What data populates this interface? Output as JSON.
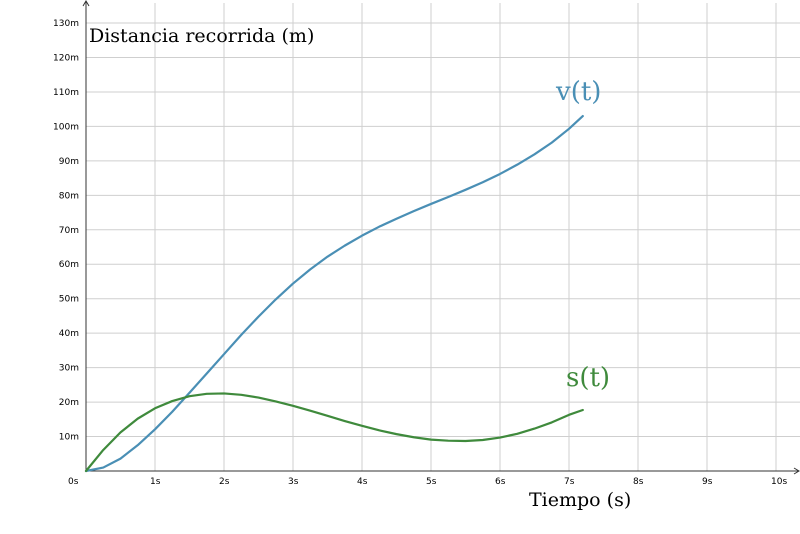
{
  "chart_data": {
    "type": "line",
    "xlabel": "Tiempo (s)",
    "ylabel": "Distancia recorrida (m)",
    "xlim": [
      0,
      10.4
    ],
    "ylim": [
      0,
      132
    ],
    "x_ticks": [
      {
        "value": 0,
        "label": "0s"
      },
      {
        "value": 1,
        "label": "1s"
      },
      {
        "value": 2,
        "label": "2s"
      },
      {
        "value": 3,
        "label": "3s"
      },
      {
        "value": 4,
        "label": "4s"
      },
      {
        "value": 5,
        "label": "5s"
      },
      {
        "value": 6,
        "label": "6s"
      },
      {
        "value": 7,
        "label": "7s"
      },
      {
        "value": 8,
        "label": "8s"
      },
      {
        "value": 9,
        "label": "9s"
      },
      {
        "value": 10,
        "label": "10s"
      }
    ],
    "y_ticks": [
      {
        "value": 10,
        "label": "10m"
      },
      {
        "value": 20,
        "label": "20m"
      },
      {
        "value": 30,
        "label": "30m"
      },
      {
        "value": 40,
        "label": "40m"
      },
      {
        "value": 50,
        "label": "50m"
      },
      {
        "value": 60,
        "label": "60m"
      },
      {
        "value": 70,
        "label": "70m"
      },
      {
        "value": 80,
        "label": "80m"
      },
      {
        "value": 90,
        "label": "90m"
      },
      {
        "value": 100,
        "label": "100m"
      },
      {
        "value": 110,
        "label": "110m"
      },
      {
        "value": 120,
        "label": "120m"
      },
      {
        "value": 130,
        "label": "130m"
      }
    ],
    "grid": true,
    "series": [
      {
        "name": "v(t)",
        "color": "#4a8fb5",
        "x": [
          0,
          0.25,
          0.5,
          0.75,
          1,
          1.25,
          1.5,
          1.75,
          2,
          2.25,
          2.5,
          2.75,
          3,
          3.25,
          3.5,
          3.75,
          4,
          4.25,
          4.5,
          4.75,
          5,
          5.25,
          5.5,
          5.75,
          6,
          6.25,
          6.5,
          6.75,
          7,
          7.2
        ],
        "y": [
          0,
          1.0,
          3.6,
          7.5,
          12.1,
          17.2,
          22.7,
          28.3,
          33.9,
          39.5,
          44.8,
          49.8,
          54.4,
          58.5,
          62.2,
          65.4,
          68.3,
          70.9,
          73.2,
          75.4,
          77.5,
          79.5,
          81.6,
          83.8,
          86.2,
          88.9,
          91.9,
          95.3,
          99.3,
          103.0
        ]
      },
      {
        "name": "s(t)",
        "color": "#3f8a3c",
        "x": [
          0,
          0.25,
          0.5,
          0.75,
          1,
          1.25,
          1.5,
          1.75,
          2,
          2.25,
          2.5,
          2.75,
          3,
          3.25,
          3.5,
          3.75,
          4,
          4.25,
          4.5,
          4.75,
          5,
          5.25,
          5.5,
          5.75,
          6,
          6.25,
          6.5,
          6.75,
          7,
          7.2
        ],
        "y": [
          0,
          6.1,
          11.2,
          15.2,
          18.2,
          20.3,
          21.7,
          22.4,
          22.5,
          22.1,
          21.3,
          20.2,
          18.9,
          17.5,
          16.0,
          14.5,
          13.1,
          11.8,
          10.7,
          9.8,
          9.1,
          8.8,
          8.7,
          9.0,
          9.7,
          10.8,
          12.3,
          14.1,
          16.3,
          17.7
        ]
      }
    ]
  }
}
